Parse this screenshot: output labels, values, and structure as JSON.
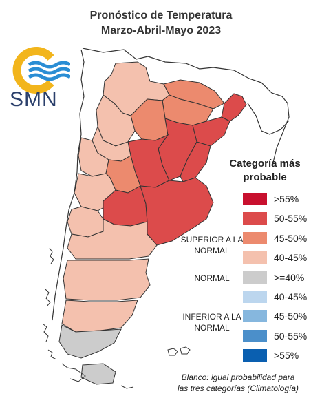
{
  "title_line1": "Pronóstico de Temperatura",
  "title_line2": "Marzo-Abril-Mayo 2023",
  "logo": {
    "text": "SMN",
    "icon": "sun-waves-logo-icon",
    "colors": {
      "sun": "#f2b51c",
      "waves": "#2a8dd4",
      "text": "#2a3f6b"
    }
  },
  "legend": {
    "title": "Categoría más probable",
    "groups": {
      "superior": "SUPERIOR A LA NORMAL",
      "normal": "NORMAL",
      "inferior": "INFERIOR A LA NORMAL"
    },
    "items": [
      {
        "label": ">55%",
        "color": "#c8102e"
      },
      {
        "label": "50-55%",
        "color": "#dc4b4b"
      },
      {
        "label": "45-50%",
        "color": "#ec8a6e"
      },
      {
        "label": "40-45%",
        "color": "#f4c1ae"
      },
      {
        "label": ">=40%",
        "color": "#cccccc"
      },
      {
        "label": "40-45%",
        "color": "#bcd6ee"
      },
      {
        "label": "45-50%",
        "color": "#86b7de"
      },
      {
        "label": "50-55%",
        "color": "#4b8fca"
      },
      {
        "label": ">55%",
        "color": "#0a5fb0"
      }
    ]
  },
  "footnote_line1": "Blanco: igual probabilidad para",
  "footnote_line2": "las tres categorías (Climatología)"
}
